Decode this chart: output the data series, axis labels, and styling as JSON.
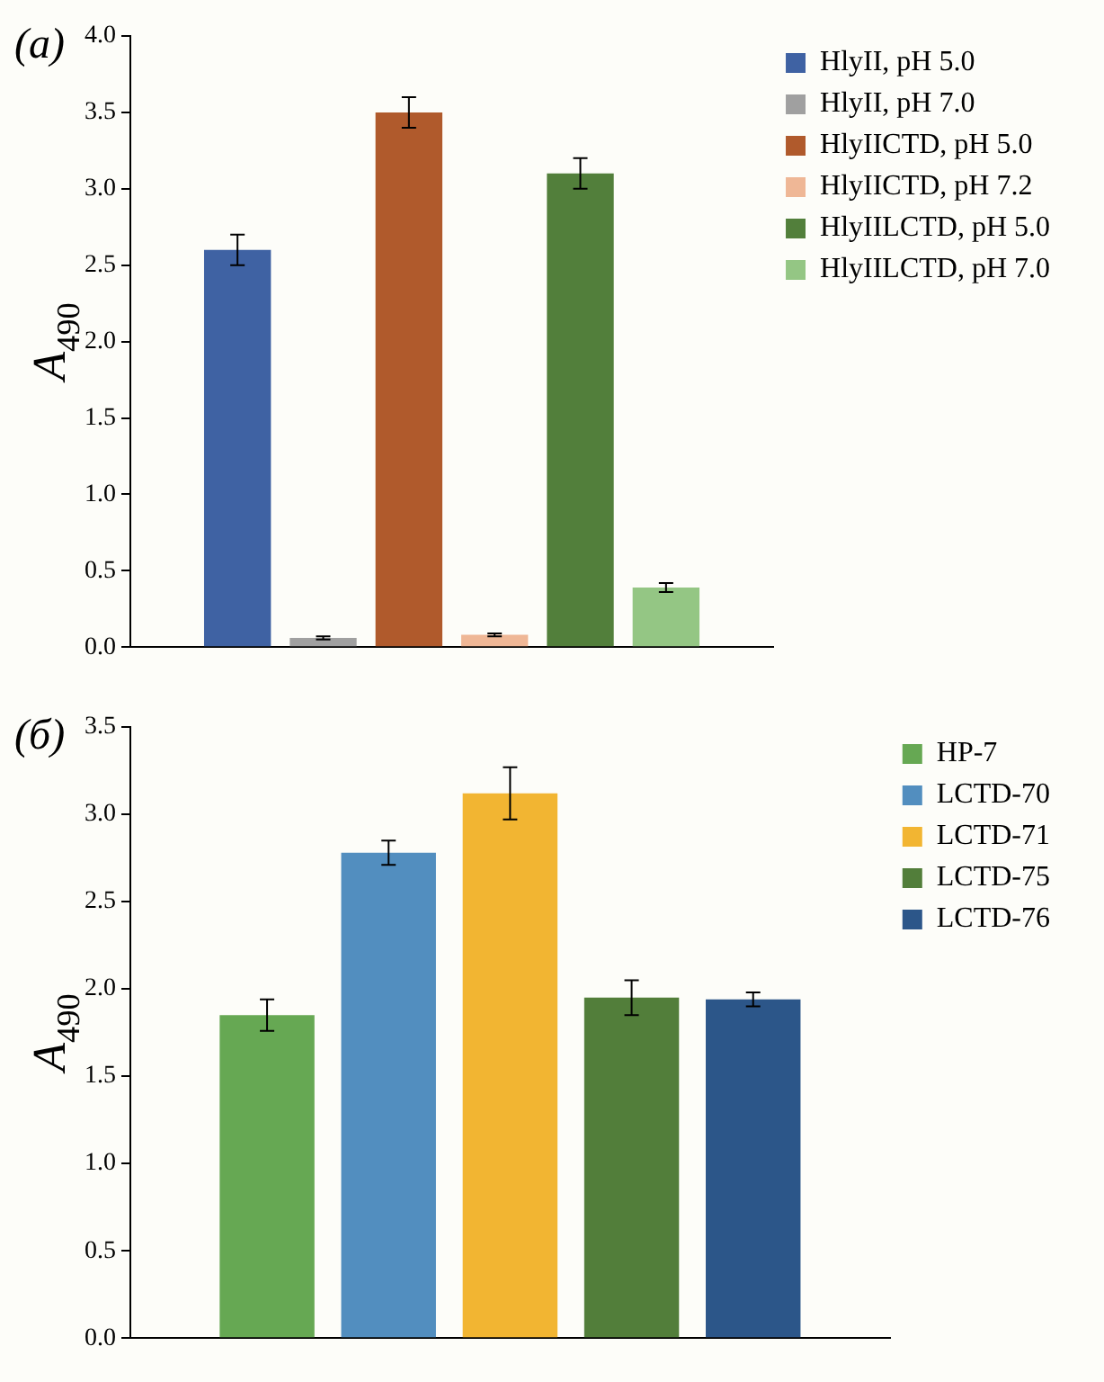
{
  "chart_data": [
    {
      "type": "bar",
      "title": "(a)",
      "ylabel": "A$_{490}$",
      "categories": [
        null
      ],
      "ylim": [
        0,
        4
      ],
      "yticks": [
        {
          "value": 0,
          "label": "0.0"
        },
        {
          "value": 0.5,
          "label": "0.5"
        },
        {
          "value": 1,
          "label": "1.0"
        },
        {
          "value": 1.5,
          "label": "1.5"
        },
        {
          "value": 2,
          "label": "2.0"
        },
        {
          "value": 2.5,
          "label": "2.5"
        },
        {
          "value": 3,
          "label": "3.0"
        },
        {
          "value": 3.5,
          "label": "3.5"
        },
        {
          "value": 4,
          "label": "4.0"
        }
      ],
      "grid": false,
      "legend": "top right",
      "series": [
        {
          "name": "HlyII, pH 5.0",
          "color": "#3f62a3",
          "values": [
            2.6
          ],
          "errors": [
            0.1
          ]
        },
        {
          "name": "HlyII, pH 7.0",
          "color": "#a0a0a0",
          "values": [
            0.06
          ],
          "errors": [
            0.01
          ]
        },
        {
          "name": "HlyIICTD, pH 5.0",
          "color": "#b05a2c",
          "values": [
            3.5
          ],
          "errors": [
            0.1
          ]
        },
        {
          "name": "HlyIICTD, pH 7.2",
          "color": "#efb796",
          "values": [
            0.08
          ],
          "errors": [
            0.01
          ]
        },
        {
          "name": "HlyIILCTD, pH 5.0",
          "color": "#527f3b",
          "values": [
            3.1
          ],
          "errors": [
            0.1
          ]
        },
        {
          "name": "HlyIILCTD, pH 7.0",
          "color": "#94c684",
          "values": [
            0.39
          ],
          "errors": [
            0.03
          ]
        }
      ]
    },
    {
      "type": "bar",
      "title": "(б)",
      "ylabel": "A$_{490}$",
      "categories": [
        null
      ],
      "ylim": [
        0,
        3.5
      ],
      "yticks": [
        {
          "value": 0,
          "label": "0.0"
        },
        {
          "value": 0.5,
          "label": "0.5"
        },
        {
          "value": 1,
          "label": "1.0"
        },
        {
          "value": 1.5,
          "label": "1.5"
        },
        {
          "value": 2,
          "label": "2.0"
        },
        {
          "value": 2.5,
          "label": "2.5"
        },
        {
          "value": 3,
          "label": "3.0"
        },
        {
          "value": 3.5,
          "label": "3.5"
        }
      ],
      "grid": false,
      "legend": "top right",
      "series": [
        {
          "name": "HP-7",
          "color": "#66a853",
          "values": [
            1.85
          ],
          "errors": [
            0.09
          ]
        },
        {
          "name": "LCTD-70",
          "color": "#528ebf",
          "values": [
            2.78
          ],
          "errors": [
            0.07
          ]
        },
        {
          "name": "LCTD-71",
          "color": "#f2b532",
          "values": [
            3.12
          ],
          "errors": [
            0.15
          ]
        },
        {
          "name": "LCTD-75",
          "color": "#527e3a",
          "values": [
            1.95
          ],
          "errors": [
            0.1
          ]
        },
        {
          "name": "LCTD-76",
          "color": "#2c5689",
          "values": [
            1.94
          ],
          "errors": [
            0.04
          ]
        }
      ]
    }
  ]
}
